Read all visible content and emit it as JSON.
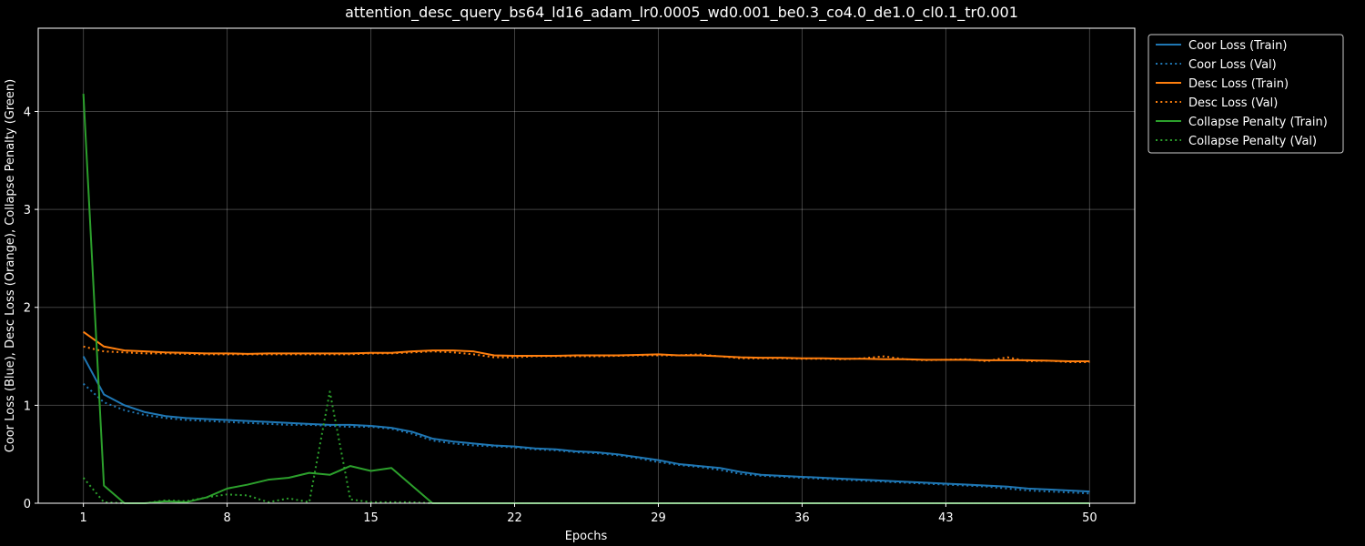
{
  "chart_data": {
    "type": "line",
    "title": "attention_desc_query_bs64_ld16_adam_lr0.0005_wd0.001_be0.3_co4.0_de1.0_cl0.1_tr0.001",
    "xlabel": "Epochs",
    "ylabel": "Coor Loss (Blue), Desc Loss (Orange), Collapse Penalty (Green)",
    "xlim": [
      1,
      50
    ],
    "ylim": [
      0,
      4.85
    ],
    "xticks": [
      1,
      8,
      15,
      22,
      29,
      36,
      43,
      50
    ],
    "yticks": [
      0,
      1,
      2,
      3,
      4
    ],
    "grid": true,
    "legend_position": "outside-top-right",
    "x": [
      1,
      2,
      3,
      4,
      5,
      6,
      7,
      8,
      9,
      10,
      11,
      12,
      13,
      14,
      15,
      16,
      17,
      18,
      19,
      20,
      21,
      22,
      23,
      24,
      25,
      26,
      27,
      28,
      29,
      30,
      31,
      32,
      33,
      34,
      35,
      36,
      37,
      38,
      39,
      40,
      41,
      42,
      43,
      44,
      45,
      46,
      47,
      48,
      49,
      50
    ],
    "series": [
      {
        "name": "Coor Loss (Train)",
        "color": "#1f77b4",
        "style": "solid",
        "values": [
          1.5,
          1.11,
          1.0,
          0.93,
          0.89,
          0.87,
          0.86,
          0.85,
          0.84,
          0.83,
          0.82,
          0.81,
          0.8,
          0.8,
          0.79,
          0.77,
          0.73,
          0.66,
          0.63,
          0.61,
          0.59,
          0.58,
          0.56,
          0.55,
          0.53,
          0.52,
          0.5,
          0.47,
          0.44,
          0.4,
          0.38,
          0.36,
          0.32,
          0.29,
          0.28,
          0.27,
          0.26,
          0.25,
          0.24,
          0.23,
          0.22,
          0.21,
          0.2,
          0.19,
          0.18,
          0.17,
          0.15,
          0.14,
          0.13,
          0.12
        ]
      },
      {
        "name": "Coor Loss (Val)",
        "color": "#1f77b4",
        "style": "dotted",
        "values": [
          1.22,
          1.03,
          0.95,
          0.9,
          0.87,
          0.85,
          0.84,
          0.83,
          0.82,
          0.81,
          0.8,
          0.8,
          0.79,
          0.78,
          0.78,
          0.76,
          0.71,
          0.64,
          0.61,
          0.59,
          0.58,
          0.57,
          0.55,
          0.54,
          0.52,
          0.51,
          0.49,
          0.46,
          0.42,
          0.39,
          0.37,
          0.34,
          0.3,
          0.28,
          0.27,
          0.26,
          0.25,
          0.24,
          0.23,
          0.22,
          0.21,
          0.2,
          0.19,
          0.18,
          0.17,
          0.15,
          0.13,
          0.12,
          0.11,
          0.1
        ]
      },
      {
        "name": "Desc Loss (Train)",
        "color": "#ff7f0e",
        "style": "solid",
        "values": [
          1.75,
          1.6,
          1.56,
          1.55,
          1.54,
          1.535,
          1.53,
          1.53,
          1.525,
          1.53,
          1.53,
          1.53,
          1.53,
          1.53,
          1.535,
          1.535,
          1.55,
          1.56,
          1.56,
          1.55,
          1.51,
          1.505,
          1.505,
          1.505,
          1.51,
          1.51,
          1.51,
          1.515,
          1.52,
          1.51,
          1.51,
          1.5,
          1.49,
          1.485,
          1.485,
          1.48,
          1.48,
          1.475,
          1.475,
          1.47,
          1.47,
          1.465,
          1.465,
          1.465,
          1.46,
          1.46,
          1.46,
          1.455,
          1.45,
          1.45
        ]
      },
      {
        "name": "Desc Loss (Val)",
        "color": "#ff7f0e",
        "style": "dotted",
        "values": [
          1.6,
          1.55,
          1.54,
          1.53,
          1.53,
          1.525,
          1.52,
          1.52,
          1.52,
          1.52,
          1.52,
          1.52,
          1.52,
          1.52,
          1.53,
          1.53,
          1.54,
          1.55,
          1.54,
          1.52,
          1.49,
          1.49,
          1.5,
          1.5,
          1.5,
          1.5,
          1.505,
          1.51,
          1.51,
          1.51,
          1.52,
          1.5,
          1.48,
          1.48,
          1.48,
          1.475,
          1.475,
          1.47,
          1.48,
          1.5,
          1.47,
          1.46,
          1.465,
          1.47,
          1.45,
          1.49,
          1.45,
          1.455,
          1.44,
          1.44
        ]
      },
      {
        "name": "Collapse Penalty (Train)",
        "color": "#2ca02c",
        "style": "solid",
        "values": [
          4.18,
          0.18,
          0.0,
          0.0,
          0.02,
          0.01,
          0.06,
          0.15,
          0.19,
          0.24,
          0.26,
          0.31,
          0.29,
          0.38,
          0.33,
          0.36,
          0.18,
          0.0,
          0.0,
          0.0,
          0.0,
          0.0,
          0.0,
          0.0,
          0.0,
          0.0,
          0.0,
          0.0,
          0.0,
          0.0,
          0.0,
          0.0,
          0.0,
          0.0,
          0.0,
          0.0,
          0.0,
          0.0,
          0.0,
          0.0,
          0.0,
          0.0,
          0.0,
          0.0,
          0.0,
          0.0,
          0.0,
          0.0,
          0.0,
          0.0
        ]
      },
      {
        "name": "Collapse Penalty (Val)",
        "color": "#2ca02c",
        "style": "dotted",
        "values": [
          0.26,
          0.01,
          0.0,
          0.0,
          0.03,
          0.02,
          0.06,
          0.09,
          0.08,
          0.01,
          0.05,
          0.01,
          1.14,
          0.04,
          0.01,
          0.01,
          0.01,
          0.0,
          0.0,
          0.0,
          0.0,
          0.0,
          0.0,
          0.0,
          0.0,
          0.0,
          0.0,
          0.0,
          0.0,
          0.0,
          0.0,
          0.0,
          0.0,
          0.0,
          0.0,
          0.0,
          0.0,
          0.0,
          0.0,
          0.0,
          0.0,
          0.0,
          0.0,
          0.0,
          0.0,
          0.0,
          0.0,
          0.0,
          0.0,
          0.0
        ]
      }
    ]
  }
}
